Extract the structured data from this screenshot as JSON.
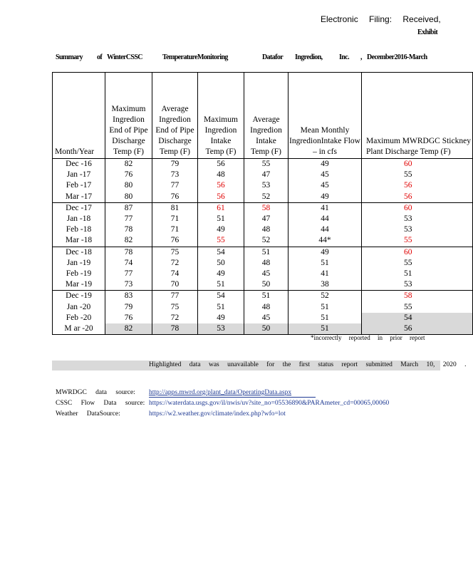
{
  "header": {
    "filing": "Electronic Filing: Received,",
    "exhibit": "Exhibit"
  },
  "title": {
    "parts": [
      "Summary",
      "of",
      "WinterCSSC",
      "TemperatureMonitoring",
      "Datafor",
      "Ingredion,",
      "Inc.",
      ",",
      "December2016-March"
    ]
  },
  "table": {
    "columns": [
      "Month/Year",
      "Maximum Ingredion End of Pipe Discharge Temp (F)",
      "Average Ingredion End of Pipe Discharge Temp (F)",
      "Maximum Ingredion Intake Temp (F)",
      "Average Ingredion Intake Temp (F)",
      "Mean Monthly IngredionIntake Flow – in cfs",
      "Maximum MWRDGC Stickney Plant Discharge Temp (F)"
    ],
    "rows": [
      {
        "month": "Dec -16",
        "values": [
          "82",
          "79",
          "56",
          "55",
          "49",
          "60"
        ],
        "red": [
          5
        ]
      },
      {
        "month": "Jan -17",
        "values": [
          "76",
          "73",
          "48",
          "47",
          "45",
          "55"
        ],
        "red": []
      },
      {
        "month": "Feb -17",
        "values": [
          "80",
          "77",
          "56",
          "53",
          "45",
          "56"
        ],
        "red": [
          2,
          5
        ]
      },
      {
        "month": "Mar -17",
        "values": [
          "80",
          "76",
          "56",
          "52",
          "49",
          "56"
        ],
        "red": [
          2,
          5
        ]
      },
      {
        "month": "Dec -17",
        "values": [
          "87",
          "81",
          "61",
          "58",
          "41",
          "60"
        ],
        "red": [
          2,
          3,
          5
        ]
      },
      {
        "month": "Jan -18",
        "values": [
          "77",
          "71",
          "51",
          "47",
          "44",
          "53"
        ],
        "red": []
      },
      {
        "month": "Feb -18",
        "values": [
          "78",
          "71",
          "49",
          "48",
          "44",
          "53"
        ],
        "red": []
      },
      {
        "month": "Mar -18",
        "values": [
          "82",
          "76",
          "55",
          "52",
          "44*",
          "55"
        ],
        "red": [
          2,
          5
        ]
      },
      {
        "month": "Dec -18",
        "values": [
          "78",
          "75",
          "54",
          "51",
          "49",
          "60"
        ],
        "red": [
          5
        ]
      },
      {
        "month": "Jan -19",
        "values": [
          "74",
          "72",
          "50",
          "48",
          "51",
          "55"
        ],
        "red": []
      },
      {
        "month": "Feb -19",
        "values": [
          "77",
          "74",
          "49",
          "45",
          "41",
          "51"
        ],
        "red": []
      },
      {
        "month": "Mar -19",
        "values": [
          "73",
          "70",
          "51",
          "50",
          "38",
          "53"
        ],
        "red": []
      },
      {
        "month": "Dec -19",
        "values": [
          "83",
          "77",
          "54",
          "51",
          "52",
          "58"
        ],
        "red": [
          5
        ]
      },
      {
        "month": "Jan -20",
        "values": [
          "79",
          "75",
          "51",
          "48",
          "51",
          "55"
        ],
        "red": []
      },
      {
        "month": "Feb -20",
        "values": [
          "76",
          "72",
          "49",
          "45",
          "51",
          "54"
        ],
        "red": [],
        "highlight": [
          5
        ]
      },
      {
        "month": "M ar -20",
        "values": [
          "82",
          "78",
          "53",
          "50",
          "51",
          "56"
        ],
        "red": [],
        "highlight": [
          0,
          1,
          2,
          3,
          4,
          5
        ]
      }
    ],
    "footnote": "*incorrectly reported in prior report"
  },
  "colors": {
    "red": "#e00000",
    "highlight": "#d9d9d9",
    "link": "#1f3a93"
  },
  "note": "Highlighted data was unavailable for the first status report submitted March 10, 2020 .",
  "sources": [
    {
      "label": "MWRDGC data source:",
      "url": "http://apps.mwrd.org/plant_data/OperatingData.aspx"
    },
    {
      "label": "CSSC Flow Data source:",
      "url": "https://waterdata.usgs.gov/il/nwis/uv?site_no=05536890&PARAmeter_cd=00065,00060"
    },
    {
      "label": "Weather DataSource:",
      "url": "https://w2.weather.gov/climate/index.php?wfo=lot"
    }
  ]
}
